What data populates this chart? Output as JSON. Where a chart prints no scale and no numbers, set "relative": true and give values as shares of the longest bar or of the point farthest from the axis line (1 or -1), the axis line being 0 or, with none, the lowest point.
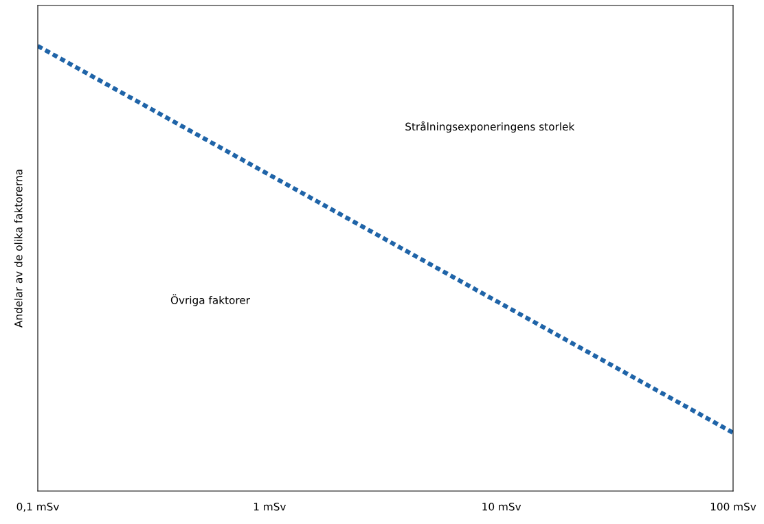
{
  "chart_data": {
    "type": "line",
    "relative": true,
    "ylabel": "Andelar av de olika faktorerna",
    "x": [
      0.1,
      100
    ],
    "log": "x",
    "xlim": [
      0.1,
      100
    ],
    "xticks": [
      {
        "value": 0.1,
        "label": "0,1 mSv"
      },
      {
        "value": 1,
        "label": "1 mSv"
      },
      {
        "value": 10,
        "label": "10 mSv"
      },
      {
        "value": 100,
        "label": "100 mSv"
      }
    ],
    "series": [
      {
        "color": "#1f64a8",
        "values": [
          1,
          0.131
        ]
      }
    ],
    "line_style": "dotted",
    "grid": false,
    "annotations": [
      "Strålningsexponeringens storlek",
      "Övriga faktorer"
    ]
  }
}
